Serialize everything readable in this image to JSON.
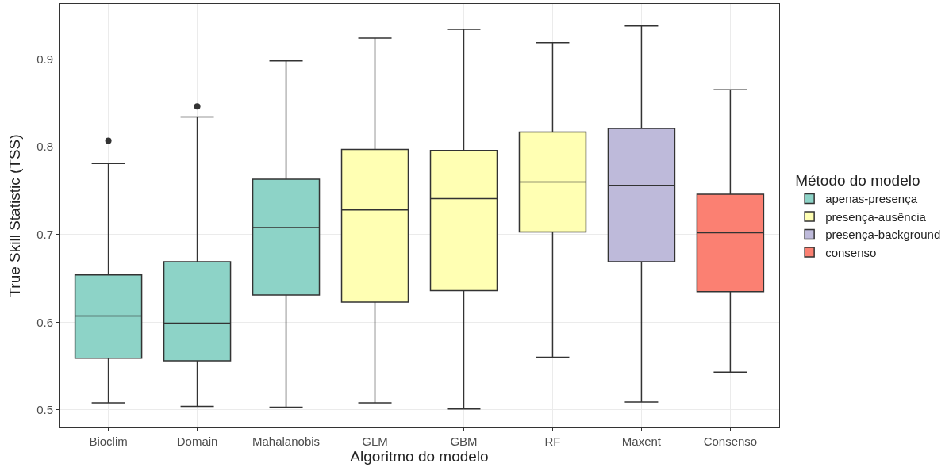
{
  "chart_data": {
    "type": "box",
    "xlabel": "Algoritmo do modelo",
    "ylabel": "True Skill Statistic (TSS)",
    "legend_title": "Método do modelo",
    "categories": [
      "Bioclim",
      "Domain",
      "Mahalanobis",
      "GLM",
      "GBM",
      "RF",
      "Maxent",
      "Consenso"
    ],
    "series": [
      {
        "name": "apenas-presença",
        "color": "#8dd3c7",
        "boxes": [
          {
            "low": 0.508,
            "q1": 0.559,
            "median": 0.607,
            "q3": 0.654,
            "high": 0.781,
            "outliers": [
              0.807
            ]
          },
          {
            "low": 0.504,
            "q1": 0.556,
            "median": 0.599,
            "q3": 0.669,
            "high": 0.834,
            "outliers": [
              0.846
            ]
          },
          {
            "low": 0.503,
            "q1": 0.631,
            "median": 0.708,
            "q3": 0.763,
            "high": 0.898
          },
          null,
          null,
          null,
          null,
          null
        ]
      },
      {
        "name": "presença-ausência",
        "color": "#ffffb3",
        "boxes": [
          null,
          null,
          null,
          {
            "low": 0.508,
            "q1": 0.623,
            "median": 0.728,
            "q3": 0.797,
            "high": 0.924
          },
          {
            "low": 0.501,
            "q1": 0.636,
            "median": 0.741,
            "q3": 0.796,
            "high": 0.934
          },
          {
            "low": 0.56,
            "q1": 0.703,
            "median": 0.76,
            "q3": 0.817,
            "high": 0.919
          },
          null,
          null
        ]
      },
      {
        "name": "presença-background",
        "color": "#bebada",
        "boxes": [
          null,
          null,
          null,
          null,
          null,
          null,
          {
            "low": 0.509,
            "q1": 0.669,
            "median": 0.756,
            "q3": 0.821,
            "high": 0.938
          },
          null
        ]
      },
      {
        "name": "consenso",
        "color": "#fb8072",
        "boxes": [
          null,
          null,
          null,
          null,
          null,
          null,
          null,
          {
            "low": 0.543,
            "q1": 0.635,
            "median": 0.702,
            "q3": 0.746,
            "high": 0.865
          }
        ]
      }
    ],
    "ylim": [
      0.48,
      0.963
    ],
    "yticks": [
      0.5,
      0.6,
      0.7,
      0.8,
      0.9
    ],
    "grid": true,
    "legend": "right"
  }
}
